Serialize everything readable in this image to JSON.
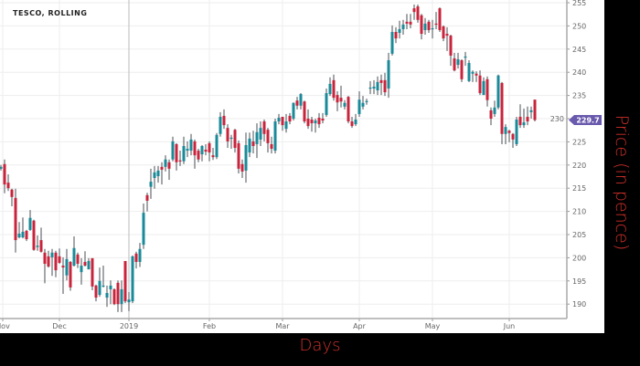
{
  "chart_data": {
    "type": "candlestick",
    "title": "TESCO, ROLLING",
    "xlabel": "Days",
    "ylabel": "Price (in pence)",
    "ylim": [
      186,
      256
    ],
    "yticks": [
      190,
      195,
      200,
      205,
      210,
      215,
      220,
      225,
      230,
      235,
      240,
      245,
      250,
      255
    ],
    "xticks": [
      {
        "label": "Nov",
        "date": "2018-11-01"
      },
      {
        "label": "Dec",
        "date": "2018-12-01"
      },
      {
        "label": "2019",
        "date": "2019-01-01"
      },
      {
        "label": "Feb",
        "date": "2019-02-01"
      },
      {
        "label": "Mar",
        "date": "2019-03-01"
      },
      {
        "label": "Apr",
        "date": "2019-04-01"
      },
      {
        "label": "May",
        "date": "2019-05-01"
      },
      {
        "label": "Jun",
        "date": "2019-06-01"
      }
    ],
    "grid": true,
    "last_price_label": "229.7",
    "colors": {
      "up": "#1a8a99",
      "down": "#c8243c",
      "wick": "#4a4f55",
      "price_tag": "#6a5aad",
      "grid": "#eeeeee",
      "axis_title": "#d0302a"
    },
    "candle_fields": [
      "date",
      "open",
      "high",
      "low",
      "close"
    ],
    "candles": [
      [
        "2018-11-09",
        219.2,
        220.0,
        218.8,
        219.6
      ],
      [
        "2018-11-12",
        220.2,
        221.2,
        213.9,
        215.8
      ],
      [
        "2018-11-13",
        216.2,
        218.0,
        214.4,
        215.0
      ],
      [
        "2018-11-14",
        214.7,
        214.9,
        211.1,
        213.1
      ],
      [
        "2018-11-15",
        212.9,
        214.9,
        201.1,
        203.8
      ],
      [
        "2018-11-16",
        204.4,
        207.7,
        204.2,
        205.2
      ],
      [
        "2018-11-19",
        204.4,
        208.7,
        204.2,
        205.6
      ],
      [
        "2018-11-20",
        205.8,
        206.0,
        203.6,
        204.0
      ],
      [
        "2018-11-21",
        206.0,
        210.3,
        205.8,
        208.6
      ],
      [
        "2018-11-22",
        208.0,
        208.2,
        201.5,
        201.7
      ],
      [
        "2018-11-23",
        202.3,
        204.8,
        201.5,
        202.6
      ],
      [
        "2018-11-26",
        203.8,
        206.5,
        201.1,
        201.3
      ],
      [
        "2018-11-27",
        201.1,
        201.9,
        194.5,
        198.7
      ],
      [
        "2018-11-28",
        200.3,
        201.5,
        197.9,
        198.1
      ],
      [
        "2018-11-29",
        200.1,
        201.9,
        196.1,
        201.1
      ],
      [
        "2018-11-30",
        201.1,
        201.5,
        195.8,
        197.3
      ],
      [
        "2018-12-03",
        200.3,
        202.0,
        198.7,
        198.9
      ],
      [
        "2018-12-04",
        198.3,
        200.1,
        192.2,
        197.9
      ],
      [
        "2018-12-05",
        196.2,
        201.9,
        195.1,
        199.7
      ],
      [
        "2018-12-06",
        199.1,
        199.3,
        192.9,
        193.6
      ],
      [
        "2018-12-07",
        198.3,
        204.6,
        198.1,
        202.1
      ],
      [
        "2018-12-10",
        200.7,
        201.1,
        197.8,
        198.7
      ],
      [
        "2018-12-11",
        196.9,
        199.9,
        194.2,
        198.3
      ],
      [
        "2018-12-12",
        199.1,
        201.4,
        198.1,
        198.3
      ],
      [
        "2018-12-13",
        197.5,
        199.9,
        197.5,
        199.3
      ],
      [
        "2018-12-14",
        199.9,
        199.9,
        193.0,
        193.8
      ],
      [
        "2018-12-17",
        194.0,
        194.2,
        190.6,
        191.4
      ],
      [
        "2018-12-18",
        192.0,
        197.9,
        191.6,
        195.0
      ],
      [
        "2018-12-19",
        193.8,
        198.3,
        193.6,
        194.0
      ],
      [
        "2018-12-20",
        191.4,
        194.0,
        189.4,
        192.4
      ],
      [
        "2018-12-21",
        193.2,
        195.1,
        190.0,
        194.0
      ],
      [
        "2018-12-24",
        193.2,
        193.4,
        189.8,
        190.0
      ],
      [
        "2018-12-27",
        194.6,
        195.1,
        188.3,
        190.0
      ],
      [
        "2018-12-28",
        190.0,
        195.1,
        188.3,
        193.2
      ],
      [
        "2018-12-31",
        199.3,
        199.3,
        190.2,
        190.6
      ],
      [
        "2019-01-02",
        190.4,
        192.6,
        188.5,
        191.0
      ],
      [
        "2019-01-03",
        190.6,
        200.5,
        190.2,
        200.3
      ],
      [
        "2019-01-04",
        200.9,
        201.3,
        197.7,
        199.1
      ],
      [
        "2019-01-07",
        199.1,
        203.2,
        198.0,
        201.9
      ],
      [
        "2019-01-08",
        202.8,
        211.7,
        201.9,
        209.7
      ],
      [
        "2019-01-09",
        213.5,
        214.0,
        210.0,
        212.3
      ],
      [
        "2019-01-10",
        215.3,
        219.2,
        212.7,
        216.4
      ],
      [
        "2019-01-11",
        217.2,
        219.8,
        214.9,
        218.4
      ],
      [
        "2019-01-14",
        217.6,
        219.8,
        216.2,
        218.8
      ],
      [
        "2019-01-15",
        219.6,
        220.6,
        215.8,
        219.0
      ],
      [
        "2019-01-16",
        219.6,
        222.1,
        218.6,
        221.2
      ],
      [
        "2019-01-17",
        220.6,
        221.2,
        216.8,
        219.2
      ],
      [
        "2019-01-18",
        221.2,
        226.1,
        220.8,
        225.1
      ],
      [
        "2019-01-21",
        224.5,
        224.7,
        218.8,
        220.6
      ],
      [
        "2019-01-22",
        221.0,
        223.1,
        219.8,
        220.8
      ],
      [
        "2019-01-23",
        220.8,
        226.1,
        220.2,
        224.1
      ],
      [
        "2019-01-24",
        223.1,
        225.1,
        221.7,
        223.5
      ],
      [
        "2019-01-25",
        223.1,
        226.7,
        222.1,
        225.5
      ],
      [
        "2019-01-28",
        225.1,
        225.5,
        219.2,
        222.1
      ],
      [
        "2019-01-29",
        223.1,
        223.5,
        220.6,
        221.2
      ],
      [
        "2019-01-30",
        222.3,
        224.3,
        220.8,
        224.1
      ],
      [
        "2019-01-31",
        223.3,
        224.5,
        222.1,
        222.9
      ],
      [
        "2019-02-01",
        224.7,
        225.1,
        220.8,
        222.7
      ],
      [
        "2019-02-04",
        222.1,
        223.7,
        221.1,
        221.7
      ],
      [
        "2019-02-05",
        221.7,
        226.9,
        221.3,
        226.5
      ],
      [
        "2019-02-06",
        226.7,
        231.4,
        226.1,
        230.4
      ],
      [
        "2019-02-07",
        230.6,
        232.0,
        227.8,
        228.6
      ],
      [
        "2019-02-08",
        228.0,
        228.8,
        223.7,
        225.1
      ],
      [
        "2019-02-11",
        225.7,
        226.5,
        223.5,
        225.9
      ],
      [
        "2019-02-12",
        227.6,
        227.8,
        222.7,
        223.7
      ],
      [
        "2019-02-13",
        224.7,
        225.3,
        218.2,
        219.2
      ],
      [
        "2019-02-14",
        220.2,
        221.2,
        217.2,
        218.6
      ],
      [
        "2019-02-15",
        218.8,
        227.0,
        216.2,
        224.3
      ],
      [
        "2019-02-18",
        222.7,
        227.0,
        221.7,
        225.7
      ],
      [
        "2019-02-19",
        225.1,
        227.4,
        222.5,
        224.1
      ],
      [
        "2019-02-20",
        224.5,
        229.0,
        221.5,
        227.1
      ],
      [
        "2019-02-21",
        225.5,
        229.4,
        224.1,
        228.0
      ],
      [
        "2019-02-22",
        229.4,
        229.8,
        225.1,
        226.7
      ],
      [
        "2019-02-25",
        227.6,
        228.0,
        222.7,
        224.7
      ],
      [
        "2019-02-26",
        224.5,
        226.1,
        222.5,
        223.5
      ],
      [
        "2019-02-27",
        223.1,
        230.0,
        222.5,
        229.4
      ],
      [
        "2019-02-28",
        229.4,
        231.0,
        228.8,
        230.2
      ],
      [
        "2019-03-01",
        230.4,
        230.4,
        227.4,
        228.6
      ],
      [
        "2019-03-04",
        227.8,
        231.0,
        227.0,
        229.4
      ],
      [
        "2019-03-05",
        230.6,
        231.2,
        228.8,
        229.4
      ],
      [
        "2019-03-06",
        230.0,
        233.5,
        229.6,
        233.4
      ],
      [
        "2019-03-07",
        233.9,
        234.7,
        232.0,
        232.8
      ],
      [
        "2019-03-08",
        232.8,
        235.5,
        232.0,
        235.3
      ],
      [
        "2019-03-11",
        233.7,
        233.9,
        229.0,
        229.4
      ],
      [
        "2019-03-12",
        230.0,
        232.0,
        227.8,
        228.4
      ],
      [
        "2019-03-13",
        229.8,
        230.4,
        227.2,
        229.0
      ],
      [
        "2019-03-14",
        229.0,
        230.0,
        227.0,
        229.6
      ],
      [
        "2019-03-15",
        230.2,
        231.2,
        228.0,
        228.8
      ],
      [
        "2019-03-18",
        230.0,
        231.2,
        229.0,
        229.6
      ],
      [
        "2019-03-19",
        230.8,
        236.5,
        230.4,
        235.5
      ],
      [
        "2019-03-20",
        235.3,
        238.9,
        234.9,
        237.5
      ],
      [
        "2019-03-21",
        238.3,
        239.5,
        233.9,
        234.5
      ],
      [
        "2019-03-22",
        235.1,
        235.9,
        231.6,
        233.5
      ],
      [
        "2019-03-25",
        234.5,
        237.1,
        232.4,
        233.7
      ],
      [
        "2019-03-26",
        232.6,
        234.0,
        232.0,
        233.4
      ],
      [
        "2019-03-27",
        234.7,
        234.9,
        229.0,
        229.4
      ],
      [
        "2019-03-28",
        229.4,
        230.4,
        228.0,
        228.4
      ],
      [
        "2019-03-29",
        228.8,
        231.0,
        228.4,
        229.8
      ],
      [
        "2019-04-01",
        231.0,
        235.9,
        230.4,
        234.1
      ],
      [
        "2019-04-02",
        232.6,
        234.9,
        232.0,
        233.4
      ],
      [
        "2019-04-03",
        233.6,
        234.3,
        233.0,
        233.8
      ],
      [
        "2019-04-04",
        236.5,
        238.1,
        235.3,
        236.7
      ],
      [
        "2019-04-05",
        236.5,
        238.3,
        235.3,
        236.9
      ],
      [
        "2019-04-08",
        236.1,
        239.1,
        235.1,
        237.9
      ],
      [
        "2019-04-09",
        238.3,
        239.5,
        235.1,
        237.7
      ],
      [
        "2019-04-10",
        238.3,
        239.9,
        234.9,
        235.7
      ],
      [
        "2019-04-11",
        236.5,
        244.2,
        234.5,
        242.6
      ],
      [
        "2019-04-12",
        244.0,
        250.1,
        243.6,
        248.7
      ],
      [
        "2019-04-15",
        248.7,
        249.7,
        246.3,
        247.3
      ],
      [
        "2019-04-16",
        248.5,
        251.1,
        247.3,
        249.3
      ],
      [
        "2019-04-17",
        249.3,
        251.3,
        248.1,
        250.3
      ],
      [
        "2019-04-18",
        250.9,
        252.6,
        249.3,
        250.5
      ],
      [
        "2019-04-23",
        250.9,
        252.6,
        249.5,
        250.3
      ],
      [
        "2019-04-24",
        253.8,
        254.6,
        251.3,
        253.0
      ],
      [
        "2019-04-25",
        254.2,
        254.6,
        250.7,
        251.3
      ],
      [
        "2019-04-26",
        252.3,
        252.6,
        247.1,
        248.3
      ],
      [
        "2019-04-29",
        249.1,
        251.7,
        248.1,
        250.5
      ],
      [
        "2019-04-30",
        250.9,
        251.3,
        248.5,
        249.1
      ],
      [
        "2019-05-01",
        249.3,
        251.3,
        247.3,
        249.5
      ],
      [
        "2019-05-02",
        250.5,
        253.0,
        249.3,
        250.3
      ],
      [
        "2019-05-03",
        253.8,
        254.0,
        248.7,
        249.1
      ],
      [
        "2019-05-07",
        249.9,
        250.1,
        246.7,
        247.3
      ],
      [
        "2019-05-08",
        248.3,
        249.7,
        244.6,
        247.9
      ],
      [
        "2019-05-09",
        247.9,
        248.1,
        241.4,
        243.6
      ],
      [
        "2019-05-10",
        243.0,
        244.2,
        240.2,
        240.4
      ],
      [
        "2019-05-13",
        241.6,
        244.2,
        240.8,
        242.8
      ],
      [
        "2019-05-14",
        242.6,
        242.8,
        237.9,
        238.5
      ],
      [
        "2019-05-15",
        243.2,
        244.4,
        241.4,
        243.4
      ],
      [
        "2019-05-16",
        238.1,
        242.6,
        237.9,
        242.0
      ],
      [
        "2019-05-17",
        239.7,
        240.4,
        237.9,
        240.1
      ],
      [
        "2019-05-20",
        239.7,
        240.2,
        237.9,
        239.3
      ],
      [
        "2019-05-21",
        239.3,
        240.4,
        235.1,
        235.5
      ],
      [
        "2019-05-22",
        235.1,
        238.9,
        235.1,
        238.1
      ],
      [
        "2019-05-23",
        238.5,
        239.1,
        232.6,
        234.0
      ],
      [
        "2019-05-24",
        231.8,
        232.4,
        228.6,
        230.0
      ],
      [
        "2019-05-28",
        231.0,
        233.9,
        230.4,
        232.4
      ],
      [
        "2019-05-29",
        232.4,
        239.5,
        232.0,
        239.3
      ],
      [
        "2019-05-30",
        237.7,
        237.9,
        224.5,
        226.7
      ],
      [
        "2019-05-31",
        226.7,
        228.8,
        224.5,
        228.2
      ],
      [
        "2019-06-03",
        227.4,
        227.6,
        224.9,
        226.9
      ],
      [
        "2019-06-04",
        226.7,
        226.9,
        223.7,
        225.5
      ],
      [
        "2019-06-05",
        224.5,
        230.4,
        224.1,
        229.8
      ],
      [
        "2019-06-06",
        230.4,
        233.1,
        228.0,
        228.6
      ],
      [
        "2019-06-07",
        228.6,
        232.2,
        228.0,
        229.2
      ],
      [
        "2019-06-10",
        230.4,
        232.6,
        228.6,
        229.4
      ],
      [
        "2019-06-11",
        231.4,
        232.6,
        230.0,
        231.8
      ],
      [
        "2019-06-12",
        234.1,
        234.1,
        229.4,
        229.7
      ]
    ]
  }
}
